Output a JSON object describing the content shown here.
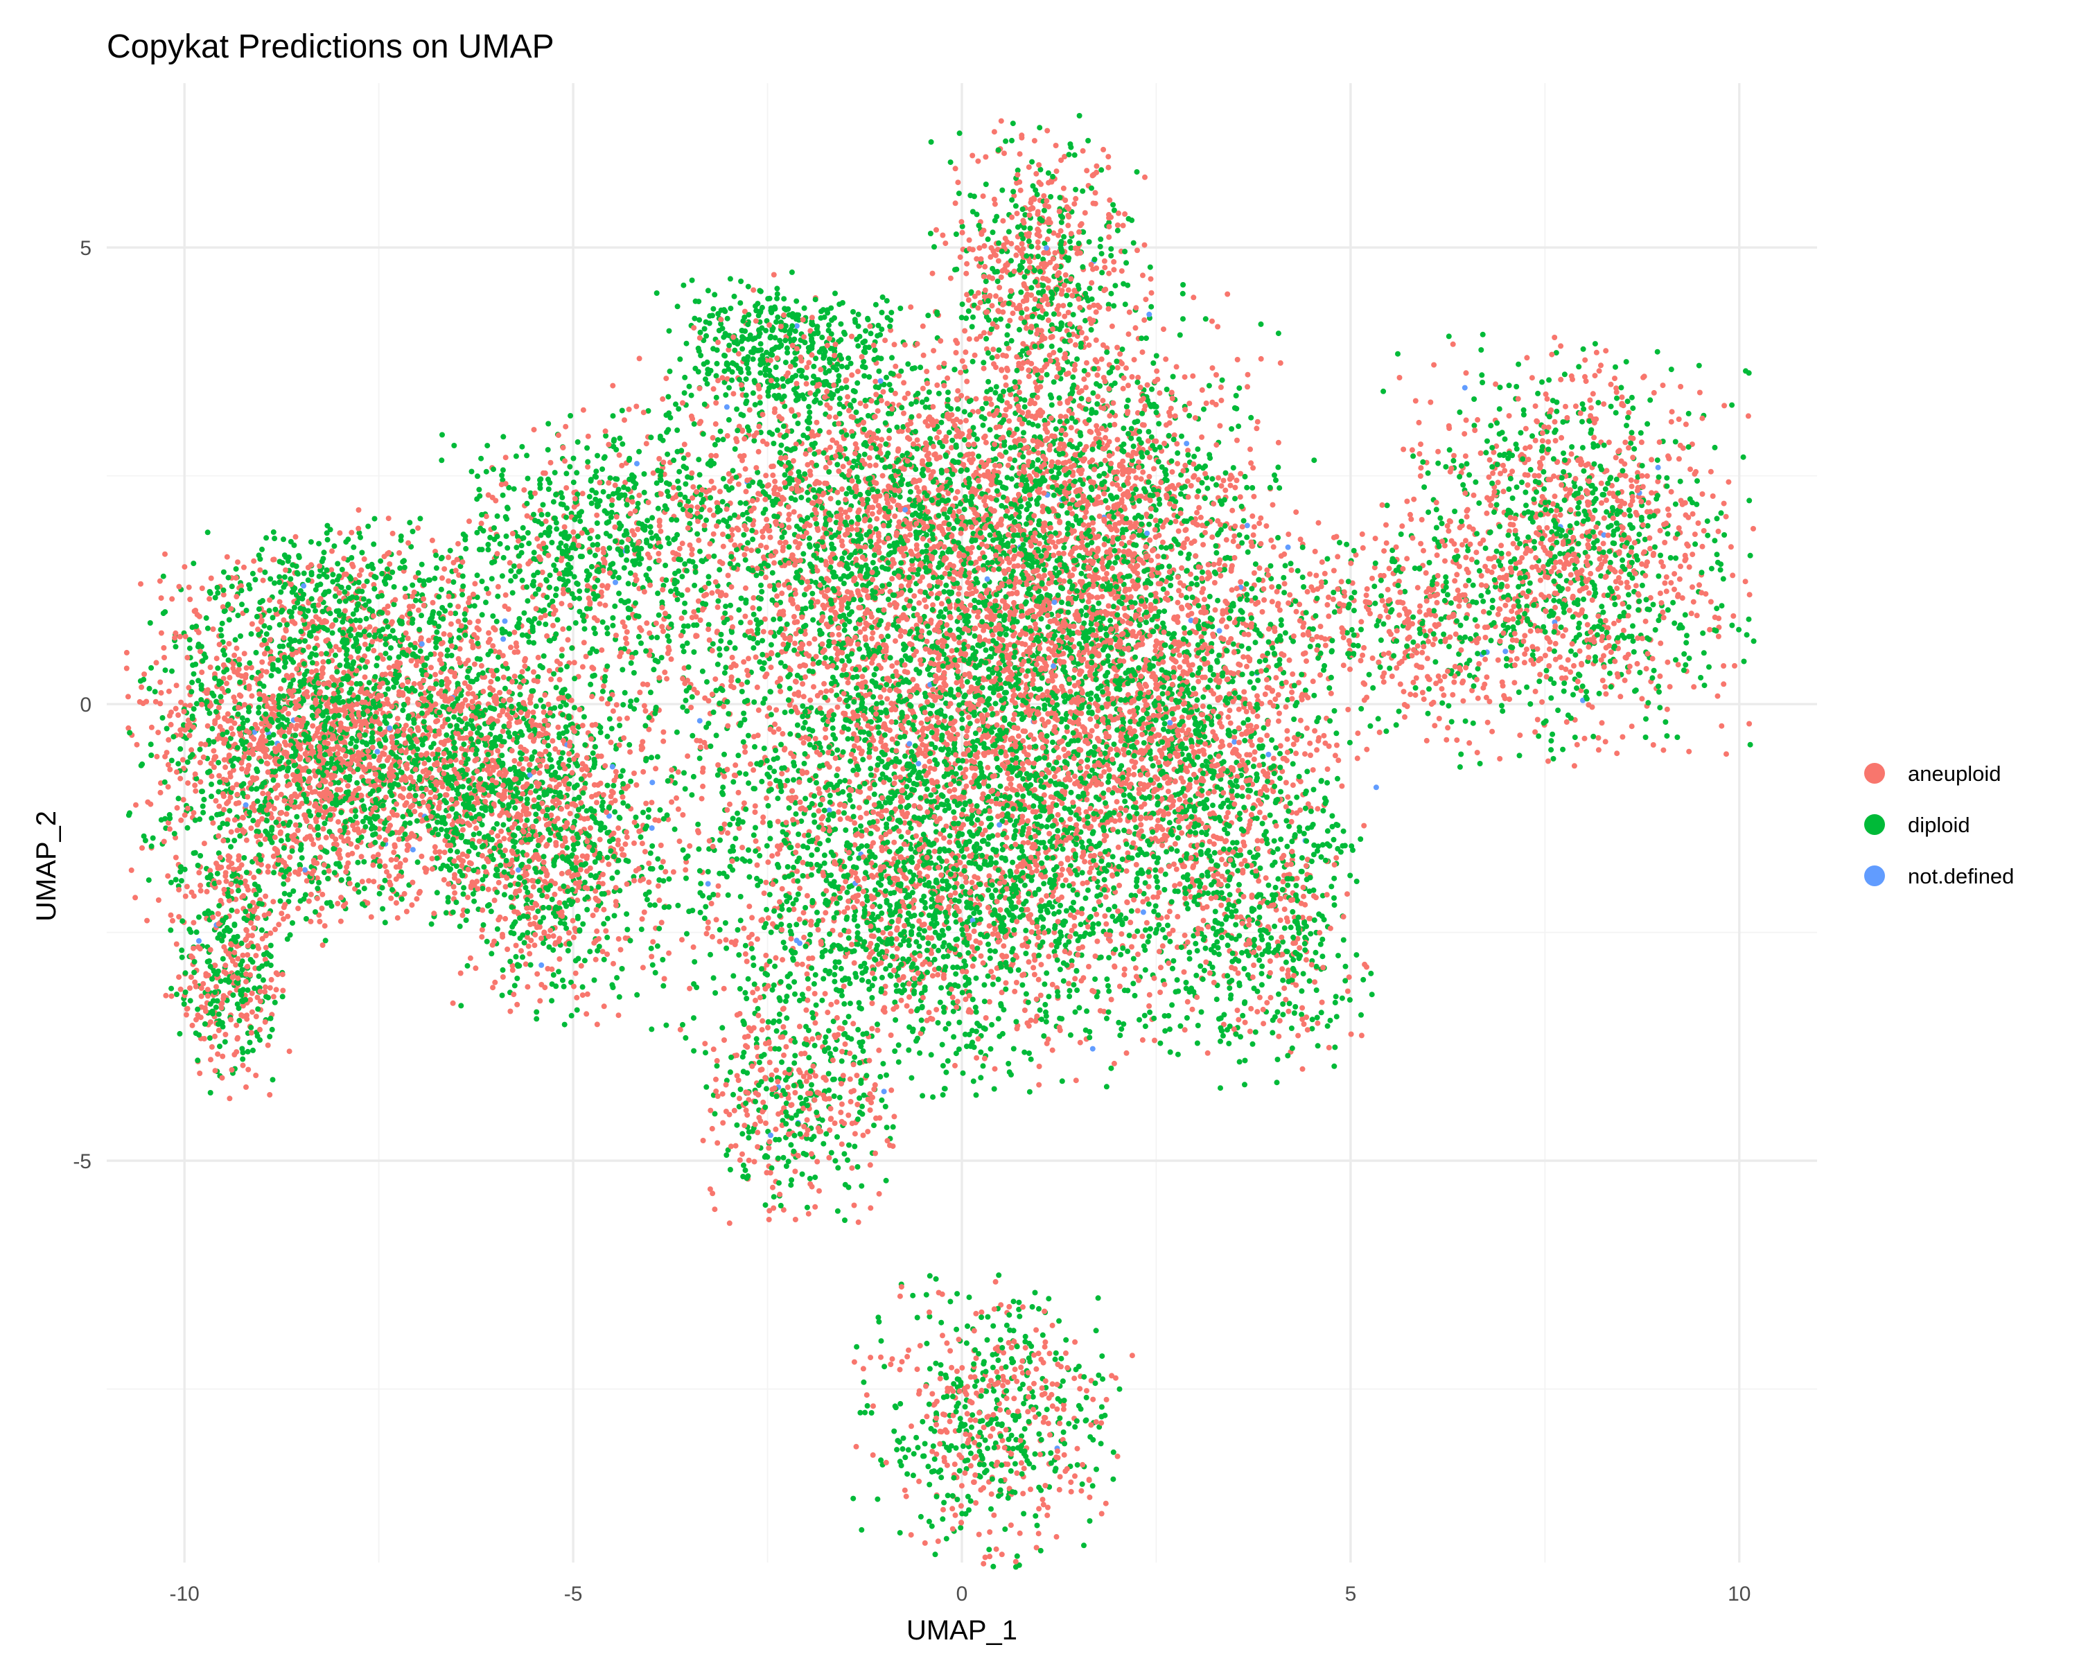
{
  "chart_data": {
    "type": "scatter",
    "title": "Copykat Predictions on UMAP",
    "xlabel": "UMAP_1",
    "ylabel": "UMAP_2",
    "xlim": [
      -11,
      11
    ],
    "ylim": [
      -9.4,
      6.8
    ],
    "x_ticks": [
      -10,
      -5,
      0,
      5,
      10
    ],
    "x_tick_labels": [
      "-10",
      "-5",
      "0",
      "5",
      "10"
    ],
    "y_ticks": [
      -5,
      0,
      5
    ],
    "y_tick_labels": [
      "-5",
      "0",
      "5"
    ],
    "grid": true,
    "legend_position": "right",
    "series": [
      {
        "name": "aneuploid",
        "color": "#F8766D"
      },
      {
        "name": "diploid",
        "color": "#00BA38"
      },
      {
        "name": "not.defined",
        "color": "#619CFF"
      }
    ],
    "density_regions": [
      {
        "label": "left arm",
        "cx": -8.6,
        "cy": -0.5,
        "sx": 0.9,
        "sy": 0.9,
        "weight": 0.09,
        "aneuploid_share": 0.6
      },
      {
        "label": "left arm bridge",
        "cx": -6.4,
        "cy": -0.5,
        "sx": 1.1,
        "sy": 0.8,
        "weight": 0.08,
        "aneuploid_share": 0.5
      },
      {
        "label": "left arm lower",
        "cx": -5.3,
        "cy": -1.7,
        "sx": 0.7,
        "sy": 0.8,
        "weight": 0.04,
        "aneuploid_share": 0.5
      },
      {
        "label": "left arm top",
        "cx": -7.7,
        "cy": 1.2,
        "sx": 1.0,
        "sy": 0.4,
        "weight": 0.02,
        "aneuploid_share": 0.3
      },
      {
        "label": "far left hook",
        "cx": -9.4,
        "cy": -2.9,
        "sx": 0.35,
        "sy": 0.6,
        "weight": 0.02,
        "aneuploid_share": 0.5
      },
      {
        "label": "upper left lobe",
        "cx": -4.8,
        "cy": 1.8,
        "sx": 0.8,
        "sy": 0.6,
        "weight": 0.03,
        "aneuploid_share": 0.25
      },
      {
        "label": "top green lobe",
        "cx": -2.3,
        "cy": 3.9,
        "sx": 0.7,
        "sy": 0.35,
        "weight": 0.02,
        "aneuploid_share": 0.1
      },
      {
        "label": "upper central",
        "cx": -1.5,
        "cy": 2.2,
        "sx": 1.3,
        "sy": 0.9,
        "weight": 0.07,
        "aneuploid_share": 0.55
      },
      {
        "label": "central core",
        "cx": -0.5,
        "cy": 0.2,
        "sx": 1.7,
        "sy": 1.4,
        "weight": 0.14,
        "aneuploid_share": 0.5
      },
      {
        "label": "central right",
        "cx": 1.6,
        "cy": 0.6,
        "sx": 1.3,
        "sy": 1.2,
        "weight": 0.1,
        "aneuploid_share": 0.6
      },
      {
        "label": "upper right central",
        "cx": 1.5,
        "cy": 2.6,
        "sx": 1.1,
        "sy": 0.9,
        "weight": 0.05,
        "aneuploid_share": 0.5
      },
      {
        "label": "top protrusion",
        "cx": 1.0,
        "cy": 4.8,
        "sx": 0.6,
        "sy": 0.7,
        "weight": 0.03,
        "aneuploid_share": 0.6
      },
      {
        "label": "lower central",
        "cx": -0.2,
        "cy": -2.2,
        "sx": 1.6,
        "sy": 0.9,
        "weight": 0.1,
        "aneuploid_share": 0.35
      },
      {
        "label": "right shoulder",
        "cx": 3.0,
        "cy": -0.3,
        "sx": 0.8,
        "sy": 1.0,
        "weight": 0.04,
        "aneuploid_share": 0.6
      },
      {
        "label": "right lower arm",
        "cx": 3.9,
        "cy": -2.3,
        "sx": 0.6,
        "sy": 0.8,
        "weight": 0.03,
        "aneuploid_share": 0.35
      },
      {
        "label": "bottom left lobe",
        "cx": -2.1,
        "cy": -4.4,
        "sx": 0.55,
        "sy": 0.55,
        "weight": 0.02,
        "aneuploid_share": 0.5
      },
      {
        "label": "bridge to right cluster",
        "cx": 5.4,
        "cy": 0.8,
        "sx": 0.9,
        "sy": 0.6,
        "weight": 0.02,
        "aneuploid_share": 0.55
      },
      {
        "label": "right cluster",
        "cx": 7.8,
        "cy": 1.7,
        "sx": 1.0,
        "sy": 1.0,
        "weight": 0.07,
        "aneuploid_share": 0.55
      },
      {
        "label": "bottom island",
        "cx": 0.4,
        "cy": -7.8,
        "sx": 0.75,
        "sy": 0.7,
        "weight": 0.03,
        "aneuploid_share": 0.45
      }
    ]
  }
}
